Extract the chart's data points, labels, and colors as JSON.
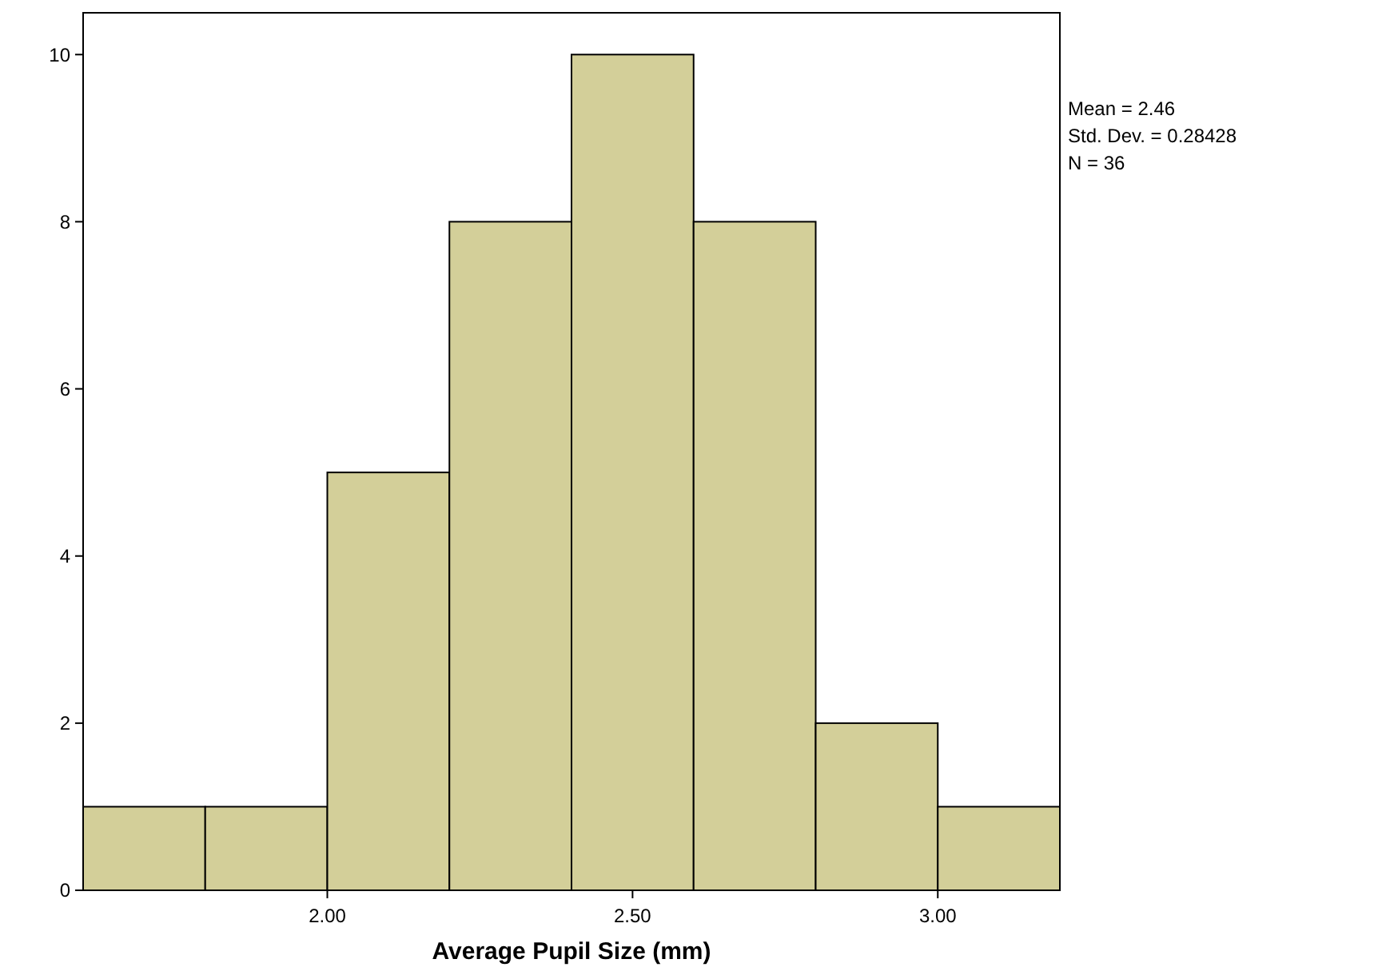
{
  "chart_data": {
    "type": "histogram",
    "xlabel": "Average Pupil Size (mm)",
    "bins": [
      1.6,
      1.8,
      2.0,
      2.2,
      2.4,
      2.6,
      2.8,
      3.0,
      3.2
    ],
    "values": [
      1,
      1,
      5,
      8,
      10,
      8,
      2,
      1
    ],
    "color": "#d3cf99",
    "xlim": [
      1.6,
      3.2
    ],
    "xticks": [
      {
        "value": 2,
        "label": "2.00"
      },
      {
        "value": 2.5,
        "label": "2.50"
      },
      {
        "value": 3,
        "label": "3.00"
      }
    ],
    "ylim": [
      0,
      10.5
    ],
    "yticks": [
      0,
      2,
      4,
      6,
      8,
      10
    ],
    "annotations": [
      "Mean = 2.46",
      "Std. Dev. = 0.28428",
      "N = 36"
    ]
  }
}
